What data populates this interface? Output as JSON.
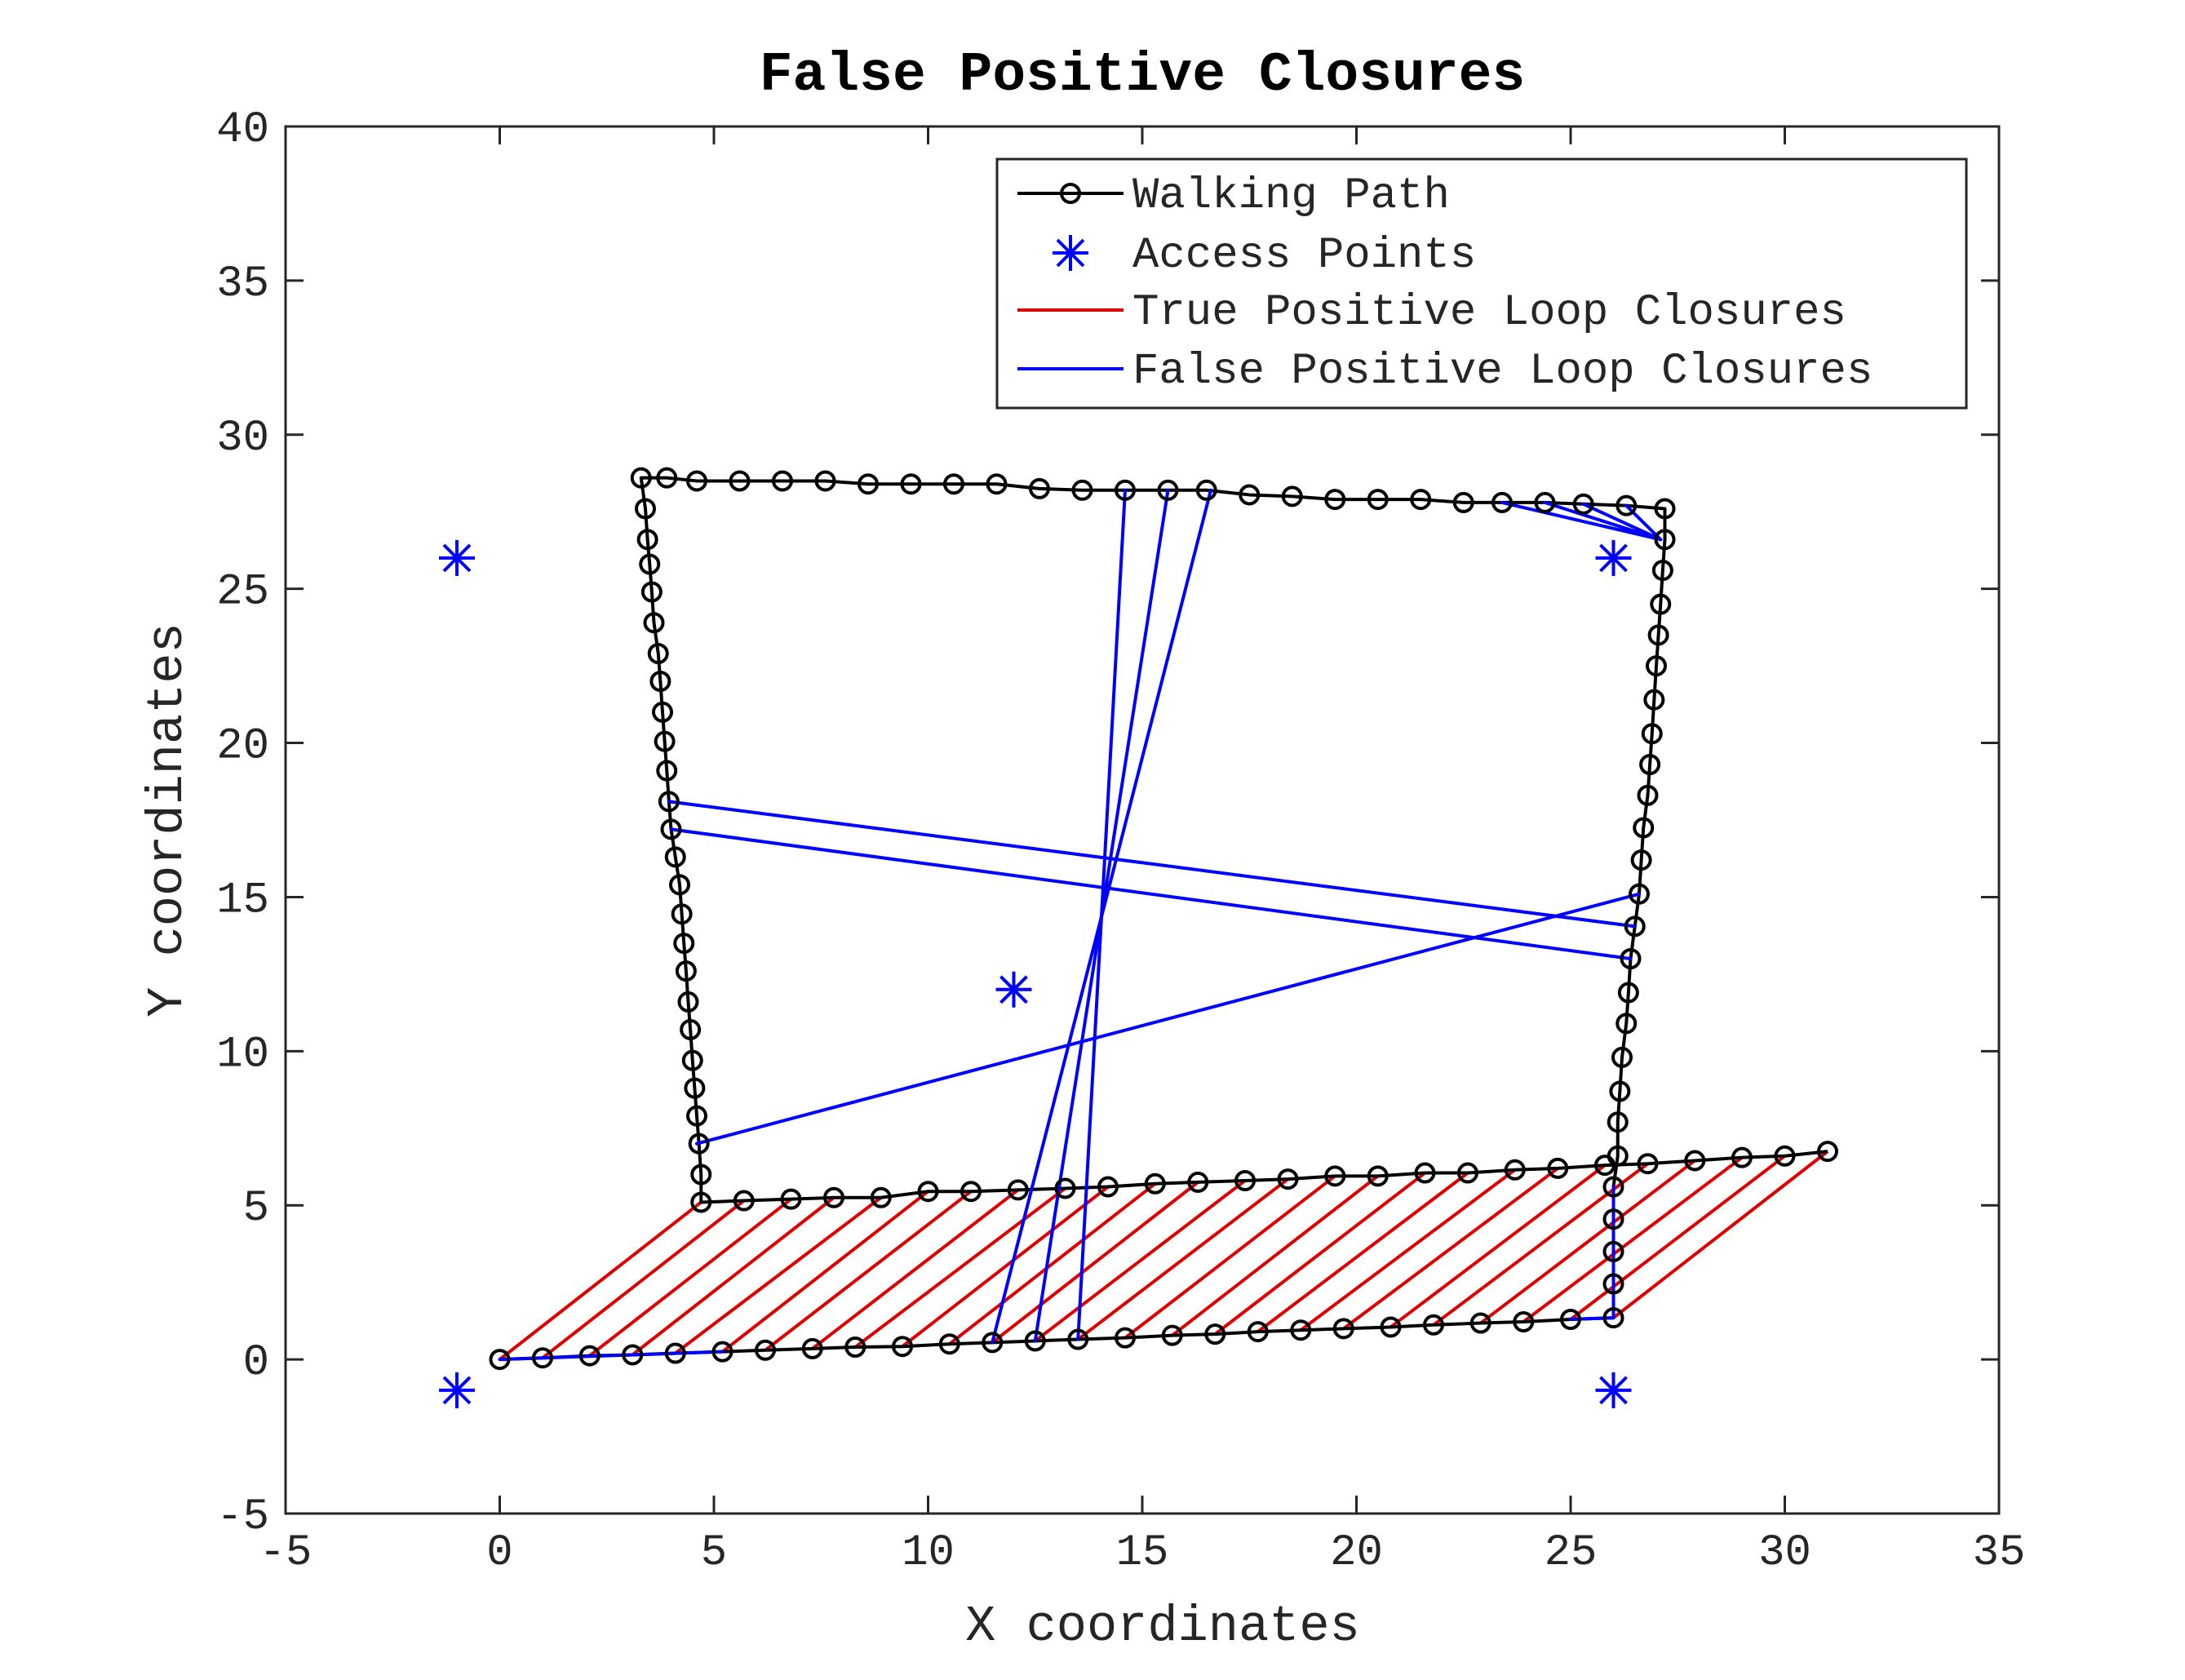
{
  "chart_data": {
    "type": "line",
    "title": "False Positive Closures",
    "xlabel": "X coordinates",
    "ylabel": "Y coordinates",
    "xlim": [
      -5,
      35
    ],
    "ylim": [
      -5,
      40
    ],
    "xticks": [
      -5,
      0,
      5,
      10,
      15,
      20,
      25,
      30,
      35
    ],
    "yticks": [
      -5,
      0,
      5,
      10,
      15,
      20,
      25,
      30,
      35,
      40
    ],
    "grid": false,
    "legend_position": "top-right",
    "colors": {
      "path": "#000000",
      "access_points": "#0000ff",
      "true_positive": "#e00000",
      "false_positive": "#0000ff"
    },
    "series": [
      {
        "name": "Walking Path",
        "style": "black-line-circle-markers",
        "points": [
          [
            0,
            0
          ],
          [
            1,
            0.05
          ],
          [
            2.1,
            0.12
          ],
          [
            3.1,
            0.15
          ],
          [
            4.1,
            0.2
          ],
          [
            5.2,
            0.25
          ],
          [
            6.2,
            0.3
          ],
          [
            7.3,
            0.35
          ],
          [
            8.3,
            0.4
          ],
          [
            9.4,
            0.42
          ],
          [
            10.5,
            0.5
          ],
          [
            11.5,
            0.55
          ],
          [
            12.5,
            0.6
          ],
          [
            13.5,
            0.65
          ],
          [
            14.6,
            0.7
          ],
          [
            15.7,
            0.78
          ],
          [
            16.7,
            0.82
          ],
          [
            17.7,
            0.9
          ],
          [
            18.7,
            0.95
          ],
          [
            19.7,
            1.0
          ],
          [
            20.8,
            1.05
          ],
          [
            21.8,
            1.12
          ],
          [
            22.9,
            1.18
          ],
          [
            23.9,
            1.22
          ],
          [
            25.0,
            1.3
          ],
          [
            26.0,
            1.35
          ],
          [
            26.0,
            2.45
          ],
          [
            26.0,
            3.5
          ],
          [
            26.0,
            4.55
          ],
          [
            26.0,
            5.6
          ],
          [
            26.1,
            6.6
          ],
          [
            26.1,
            7.7
          ],
          [
            26.15,
            8.7
          ],
          [
            26.2,
            9.8
          ],
          [
            26.3,
            10.9
          ],
          [
            26.35,
            11.9
          ],
          [
            26.4,
            13.0
          ],
          [
            26.5,
            14.05
          ],
          [
            26.6,
            15.1
          ],
          [
            26.65,
            16.2
          ],
          [
            26.7,
            17.25
          ],
          [
            26.8,
            18.3
          ],
          [
            26.85,
            19.3
          ],
          [
            26.9,
            20.3
          ],
          [
            26.95,
            21.4
          ],
          [
            27.0,
            22.5
          ],
          [
            27.05,
            23.5
          ],
          [
            27.1,
            24.5
          ],
          [
            27.15,
            25.6
          ],
          [
            27.2,
            26.6
          ],
          [
            27.2,
            27.6
          ],
          [
            26.3,
            27.7
          ],
          [
            25.3,
            27.75
          ],
          [
            24.4,
            27.8
          ],
          [
            23.4,
            27.8
          ],
          [
            22.5,
            27.8
          ],
          [
            21.5,
            27.9
          ],
          [
            20.5,
            27.9
          ],
          [
            19.5,
            27.9
          ],
          [
            18.5,
            28.0
          ],
          [
            17.5,
            28.05
          ],
          [
            16.5,
            28.2
          ],
          [
            15.6,
            28.2
          ],
          [
            14.6,
            28.2
          ],
          [
            13.6,
            28.2
          ],
          [
            12.6,
            28.25
          ],
          [
            11.6,
            28.4
          ],
          [
            10.6,
            28.4
          ],
          [
            9.6,
            28.4
          ],
          [
            8.6,
            28.4
          ],
          [
            7.6,
            28.5
          ],
          [
            6.6,
            28.5
          ],
          [
            5.6,
            28.5
          ],
          [
            4.6,
            28.5
          ],
          [
            3.9,
            28.6
          ],
          [
            3.3,
            28.6
          ],
          [
            3.4,
            27.6
          ],
          [
            3.45,
            26.6
          ],
          [
            3.5,
            25.8
          ],
          [
            3.55,
            24.9
          ],
          [
            3.6,
            23.9
          ],
          [
            3.7,
            22.9
          ],
          [
            3.75,
            22.0
          ],
          [
            3.8,
            21.0
          ],
          [
            3.85,
            20.05
          ],
          [
            3.9,
            19.1
          ],
          [
            3.95,
            18.1
          ],
          [
            4.0,
            17.2
          ],
          [
            4.1,
            16.3
          ],
          [
            4.2,
            15.4
          ],
          [
            4.25,
            14.45
          ],
          [
            4.3,
            13.5
          ],
          [
            4.35,
            12.6
          ],
          [
            4.4,
            11.6
          ],
          [
            4.45,
            10.7
          ],
          [
            4.5,
            9.7
          ],
          [
            4.55,
            8.8
          ],
          [
            4.6,
            7.9
          ],
          [
            4.65,
            7.0
          ],
          [
            4.7,
            6.0
          ],
          [
            4.7,
            5.1
          ],
          [
            5.7,
            5.15
          ],
          [
            6.8,
            5.2
          ],
          [
            7.8,
            5.25
          ],
          [
            8.9,
            5.25
          ],
          [
            10.0,
            5.45
          ],
          [
            11.0,
            5.45
          ],
          [
            12.1,
            5.5
          ],
          [
            13.2,
            5.55
          ],
          [
            14.2,
            5.6
          ],
          [
            15.3,
            5.7
          ],
          [
            16.3,
            5.75
          ],
          [
            17.4,
            5.8
          ],
          [
            18.4,
            5.85
          ],
          [
            19.5,
            5.95
          ],
          [
            20.5,
            5.95
          ],
          [
            21.6,
            6.05
          ],
          [
            22.6,
            6.05
          ],
          [
            23.7,
            6.15
          ],
          [
            24.7,
            6.2
          ],
          [
            25.8,
            6.3
          ],
          [
            26.8,
            6.35
          ],
          [
            27.9,
            6.45
          ],
          [
            29.0,
            6.55
          ],
          [
            30.0,
            6.6
          ],
          [
            31.0,
            6.75
          ]
        ]
      },
      {
        "name": "Access Points",
        "style": "blue-asterisk-markers",
        "points": [
          [
            -1,
            26
          ],
          [
            26,
            26
          ],
          [
            12,
            12
          ],
          [
            -1,
            -1
          ],
          [
            26,
            -1
          ]
        ]
      },
      {
        "name": "True Positive Loop Closures",
        "style": "red-lines",
        "segments": [
          [
            [
              0,
              0
            ],
            [
              4.7,
              5.1
            ]
          ],
          [
            [
              1,
              0.05
            ],
            [
              5.7,
              5.15
            ]
          ],
          [
            [
              2.1,
              0.12
            ],
            [
              6.8,
              5.2
            ]
          ],
          [
            [
              3.1,
              0.15
            ],
            [
              7.8,
              5.25
            ]
          ],
          [
            [
              4.1,
              0.2
            ],
            [
              8.9,
              5.25
            ]
          ],
          [
            [
              5.2,
              0.25
            ],
            [
              10.0,
              5.45
            ]
          ],
          [
            [
              6.2,
              0.3
            ],
            [
              11.0,
              5.45
            ]
          ],
          [
            [
              7.3,
              0.35
            ],
            [
              12.1,
              5.5
            ]
          ],
          [
            [
              8.3,
              0.4
            ],
            [
              13.2,
              5.55
            ]
          ],
          [
            [
              9.4,
              0.42
            ],
            [
              14.2,
              5.6
            ]
          ],
          [
            [
              10.5,
              0.5
            ],
            [
              15.3,
              5.7
            ]
          ],
          [
            [
              11.5,
              0.55
            ],
            [
              16.3,
              5.75
            ]
          ],
          [
            [
              12.5,
              0.6
            ],
            [
              17.4,
              5.8
            ]
          ],
          [
            [
              13.5,
              0.65
            ],
            [
              18.4,
              5.85
            ]
          ],
          [
            [
              14.6,
              0.7
            ],
            [
              19.5,
              5.95
            ]
          ],
          [
            [
              15.7,
              0.78
            ],
            [
              20.5,
              5.95
            ]
          ],
          [
            [
              16.7,
              0.82
            ],
            [
              21.6,
              6.05
            ]
          ],
          [
            [
              17.7,
              0.9
            ],
            [
              22.6,
              6.05
            ]
          ],
          [
            [
              18.7,
              0.95
            ],
            [
              23.7,
              6.15
            ]
          ],
          [
            [
              19.7,
              1.0
            ],
            [
              24.7,
              6.2
            ]
          ],
          [
            [
              20.8,
              1.05
            ],
            [
              25.8,
              6.3
            ]
          ],
          [
            [
              21.8,
              1.12
            ],
            [
              26.8,
              6.35
            ]
          ],
          [
            [
              22.9,
              1.18
            ],
            [
              27.9,
              6.45
            ]
          ],
          [
            [
              23.9,
              1.22
            ],
            [
              29.0,
              6.55
            ]
          ],
          [
            [
              25.0,
              1.3
            ],
            [
              30.0,
              6.6
            ]
          ],
          [
            [
              26.0,
              1.35
            ],
            [
              31.0,
              6.75
            ]
          ]
        ]
      },
      {
        "name": "False Positive Loop Closures",
        "style": "blue-lines",
        "segments": [
          [
            [
              11.5,
              0.55
            ],
            [
              16.6,
              28.2
            ]
          ],
          [
            [
              12.5,
              0.6
            ],
            [
              15.6,
              28.2
            ]
          ],
          [
            [
              13.5,
              0.65
            ],
            [
              14.6,
              28.2
            ]
          ],
          [
            [
              4.6,
              7.0
            ],
            [
              26.6,
              15.1
            ]
          ],
          [
            [
              3.95,
              18.1
            ],
            [
              26.5,
              14.05
            ]
          ],
          [
            [
              4.0,
              17.2
            ],
            [
              26.4,
              13.0
            ]
          ],
          [
            [
              23.4,
              27.8
            ],
            [
              27.1,
              26.6
            ]
          ],
          [
            [
              24.4,
              27.8
            ],
            [
              27.1,
              26.6
            ]
          ],
          [
            [
              25.3,
              27.75
            ],
            [
              27.1,
              26.6
            ]
          ],
          [
            [
              26.3,
              27.7
            ],
            [
              27.1,
              26.6
            ]
          ],
          [
            [
              0,
              0
            ],
            [
              5.2,
              0.25
            ]
          ],
          [
            [
              25.0,
              1.3
            ],
            [
              26.0,
              1.35
            ]
          ],
          [
            [
              26.0,
              1.35
            ],
            [
              26.0,
              5.6
            ]
          ]
        ]
      }
    ]
  }
}
